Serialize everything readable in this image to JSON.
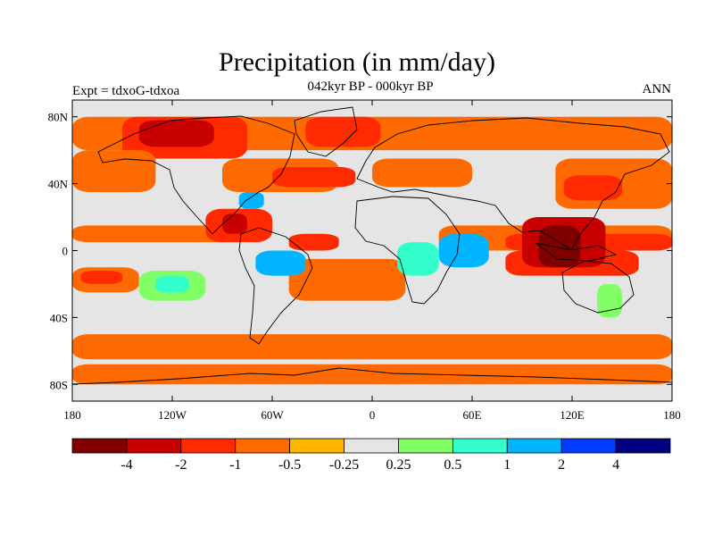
{
  "title": "Precipitation (in mm/day)",
  "subtitle": "042kyr BP - 000kyr BP",
  "left_label": "Expt = tdxoG-tdxoa",
  "right_label": "ANN",
  "chart_data": {
    "type": "heatmap",
    "variable": "Precipitation anomaly",
    "units": "mm/day",
    "x_range": [
      -180,
      180
    ],
    "y_range": [
      -90,
      90
    ],
    "x_ticks": [
      {
        "value": -180,
        "label": "180"
      },
      {
        "value": -120,
        "label": "120W"
      },
      {
        "value": -60,
        "label": "60W"
      },
      {
        "value": 0,
        "label": "0"
      },
      {
        "value": 60,
        "label": "60E"
      },
      {
        "value": 120,
        "label": "120E"
      },
      {
        "value": 180,
        "label": "180"
      }
    ],
    "y_ticks": [
      {
        "value": 80,
        "label": "80N"
      },
      {
        "value": 40,
        "label": "40N"
      },
      {
        "value": 0,
        "label": "0"
      },
      {
        "value": -40,
        "label": "40S"
      },
      {
        "value": -80,
        "label": "80S"
      }
    ],
    "background_color": "#e5e5e5",
    "regions": [
      {
        "level": "-0.5",
        "lon": [
          -180,
          180
        ],
        "lat": [
          60,
          80
        ]
      },
      {
        "level": "-1",
        "lon": [
          -150,
          -75
        ],
        "lat": [
          55,
          80
        ]
      },
      {
        "level": "-2",
        "lon": [
          -140,
          -95
        ],
        "lat": [
          62,
          78
        ]
      },
      {
        "level": "-1",
        "lon": [
          -40,
          5
        ],
        "lat": [
          62,
          80
        ]
      },
      {
        "level": "-0.5",
        "lon": [
          -180,
          -130
        ],
        "lat": [
          35,
          60
        ]
      },
      {
        "level": "-0.5",
        "lon": [
          -90,
          -20
        ],
        "lat": [
          35,
          55
        ]
      },
      {
        "level": "-1",
        "lon": [
          -60,
          -10
        ],
        "lat": [
          38,
          50
        ]
      },
      {
        "level": "-0.5",
        "lon": [
          0,
          60
        ],
        "lat": [
          38,
          55
        ]
      },
      {
        "level": "-0.5",
        "lon": [
          110,
          180
        ],
        "lat": [
          25,
          55
        ]
      },
      {
        "level": "-1",
        "lon": [
          115,
          150
        ],
        "lat": [
          30,
          45
        ]
      },
      {
        "level": "-0.5",
        "lon": [
          -180,
          -80
        ],
        "lat": [
          5,
          15
        ]
      },
      {
        "level": "-1",
        "lon": [
          -100,
          -60
        ],
        "lat": [
          5,
          25
        ]
      },
      {
        "level": "-2",
        "lon": [
          -90,
          -75
        ],
        "lat": [
          10,
          22
        ]
      },
      {
        "level": "-1",
        "lon": [
          -50,
          -20
        ],
        "lat": [
          0,
          10
        ]
      },
      {
        "level": "-0.5",
        "lon": [
          -180,
          -140
        ],
        "lat": [
          -25,
          -10
        ]
      },
      {
        "level": "-1",
        "lon": [
          -175,
          -150
        ],
        "lat": [
          -20,
          -12
        ]
      },
      {
        "level": "-0.5",
        "lon": [
          -50,
          20
        ],
        "lat": [
          -30,
          -5
        ]
      },
      {
        "level": "-0.5",
        "lon": [
          40,
          180
        ],
        "lat": [
          0,
          15
        ]
      },
      {
        "level": "-1",
        "lon": [
          80,
          180
        ],
        "lat": [
          0,
          10
        ]
      },
      {
        "level": "-1",
        "lon": [
          80,
          160
        ],
        "lat": [
          -15,
          0
        ]
      },
      {
        "level": "-2",
        "lon": [
          90,
          140
        ],
        "lat": [
          -10,
          20
        ]
      },
      {
        "level": "-4",
        "lon": [
          100,
          125
        ],
        "lat": [
          -10,
          15
        ]
      },
      {
        "level": "-0.5",
        "lon": [
          -180,
          180
        ],
        "lat": [
          -65,
          -50
        ]
      },
      {
        "level": "-0.5",
        "lon": [
          -180,
          180
        ],
        "lat": [
          -80,
          -68
        ]
      },
      {
        "level": "0.25",
        "lon": [
          -140,
          -100
        ],
        "lat": [
          -30,
          -12
        ]
      },
      {
        "level": "0.5",
        "lon": [
          -130,
          -110
        ],
        "lat": [
          -25,
          -15
        ]
      },
      {
        "level": "1",
        "lon": [
          -70,
          -40
        ],
        "lat": [
          -15,
          0
        ]
      },
      {
        "level": "1",
        "lon": [
          40,
          70
        ],
        "lat": [
          -10,
          10
        ]
      },
      {
        "level": "0.5",
        "lon": [
          15,
          40
        ],
        "lat": [
          -15,
          5
        ]
      },
      {
        "level": "1",
        "lon": [
          -80,
          -65
        ],
        "lat": [
          25,
          35
        ]
      },
      {
        "level": "0.25",
        "lon": [
          135,
          150
        ],
        "lat": [
          -40,
          -20
        ]
      }
    ],
    "colorbar": {
      "colors": [
        "#800000",
        "#c80000",
        "#ff2a00",
        "#ff6a00",
        "#ffb400",
        "#e5e5e5",
        "#80ff66",
        "#33ffcc",
        "#00b4ff",
        "#003cff",
        "#000080"
      ],
      "labels": [
        "-4",
        "-2",
        "-1",
        "-0.5",
        "-0.25",
        "0.25",
        "0.5",
        "1",
        "2",
        "4"
      ]
    }
  }
}
